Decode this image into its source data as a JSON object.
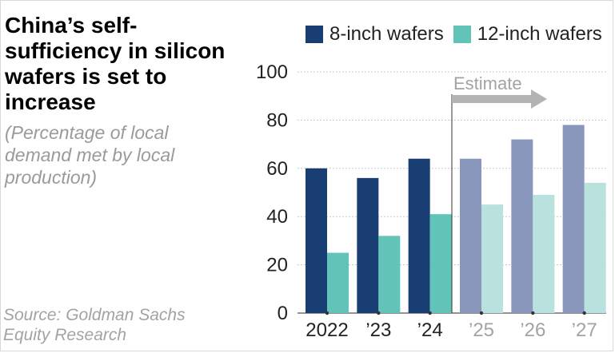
{
  "title": "China’s self-sufficiency in silicon wafers is set to increase",
  "subtitle": "(Percentage of local demand met by local production)",
  "source": "Source: Goldman Sachs Equity Research",
  "colors": {
    "actual_8": "#193e73",
    "actual_12": "#62c4b8",
    "estimate_8": "#8897bb",
    "estimate_12": "#b9e1dd",
    "grid": "#c8c8c8",
    "arrow": "#b3b3b3",
    "text": "#222222",
    "estimate_text": "#a3a3a3"
  },
  "chart_data": {
    "type": "bar",
    "title": "China’s self-sufficiency in silicon wafers is set to increase",
    "ylabel": "Percentage of local demand met by local production",
    "xlabel": "",
    "categories": [
      "2022",
      "’23",
      "’24",
      "’25",
      "’26",
      "’27"
    ],
    "estimate_from_index": 3,
    "estimate_label": "Estimate",
    "series": [
      {
        "name": "8-inch wafers",
        "values": [
          60,
          56,
          64,
          64,
          72,
          78
        ]
      },
      {
        "name": "12-inch wafers",
        "values": [
          25,
          32,
          41,
          45,
          49,
          54
        ]
      }
    ],
    "ylim": [
      0,
      100
    ],
    "yticks": [
      0,
      20,
      40,
      60,
      80,
      100
    ],
    "grid": true,
    "legend_position": "top"
  }
}
